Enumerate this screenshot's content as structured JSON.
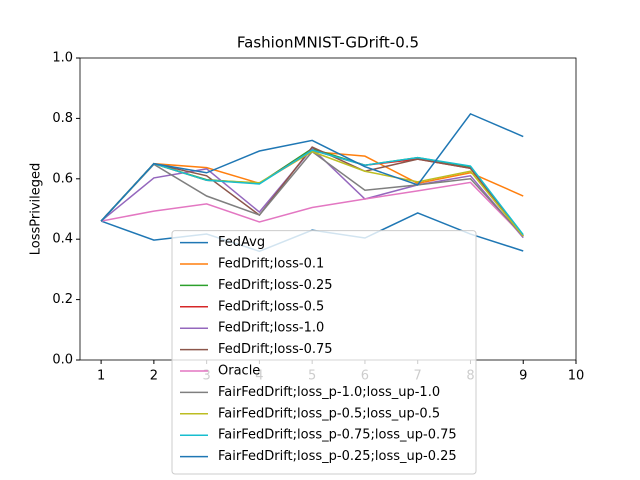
{
  "chart_data": {
    "type": "line",
    "title": "FashionMNIST-GDrift-0.5",
    "y_label": "LossPrivileged",
    "x": [
      1,
      2,
      3,
      4,
      5,
      6,
      7,
      8,
      9
    ],
    "xlim": [
      0.6,
      10
    ],
    "xticks": [
      1,
      2,
      3,
      4,
      5,
      6,
      7,
      8,
      9,
      10
    ],
    "ylim": [
      0,
      1
    ],
    "yticks": [
      {
        "value": 0,
        "label": "0.0"
      },
      {
        "value": 0.2,
        "label": "0.2"
      },
      {
        "value": 0.4,
        "label": "0.4"
      },
      {
        "value": 0.6,
        "label": "0.6"
      },
      {
        "value": 0.8,
        "label": "0.8"
      },
      {
        "value": 1,
        "label": "1.0"
      }
    ],
    "legend": "lower center",
    "series": [
      {
        "name": "FedAvg",
        "color": "#1f77b4",
        "values": [
          0.46,
          0.397,
          0.417,
          0.36,
          0.43,
          0.404,
          0.487,
          0.417,
          0.361
        ]
      },
      {
        "name": "FedDrift;loss-0.1",
        "color": "#ff7f0e",
        "values": [
          0.46,
          0.65,
          0.637,
          0.585,
          0.69,
          0.675,
          0.585,
          0.62,
          0.543
        ]
      },
      {
        "name": "FedDrift;loss-0.25",
        "color": "#2ca02c",
        "values": [
          0.46,
          0.65,
          0.597,
          0.585,
          0.7,
          0.645,
          0.67,
          0.64,
          0.41
        ]
      },
      {
        "name": "FedDrift;loss-0.5",
        "color": "#d62728",
        "values": [
          0.46,
          0.65,
          0.595,
          0.585,
          0.695,
          0.645,
          0.665,
          0.635,
          0.41
        ]
      },
      {
        "name": "FedDrift;loss-1.0",
        "color": "#9467bd",
        "values": [
          0.46,
          0.603,
          0.633,
          0.49,
          0.7,
          0.533,
          0.58,
          0.61,
          0.405
        ]
      },
      {
        "name": "FedDrift;loss-0.75",
        "color": "#8c564b",
        "values": [
          0.46,
          0.65,
          0.61,
          0.48,
          0.705,
          0.625,
          0.665,
          0.635,
          0.41
        ]
      },
      {
        "name": "Oracle",
        "color": "#e377c2",
        "values": [
          0.46,
          0.493,
          0.517,
          0.457,
          0.505,
          0.533,
          0.56,
          0.588,
          0.41
        ]
      },
      {
        "name": "FairFedDrift;loss_p-1.0;loss_up-1.0",
        "color": "#7f7f7f",
        "values": [
          0.46,
          0.648,
          0.543,
          0.48,
          0.69,
          0.562,
          0.58,
          0.6,
          0.41
        ]
      },
      {
        "name": "FairFedDrift;loss_p-0.5;loss_up-0.5",
        "color": "#bcbd22",
        "values": [
          0.46,
          0.65,
          0.595,
          0.587,
          0.69,
          0.625,
          0.59,
          0.625,
          0.41
        ]
      },
      {
        "name": "FairFedDrift;loss_p-0.75;loss_up-0.75",
        "color": "#17becf",
        "values": [
          0.46,
          0.65,
          0.595,
          0.583,
          0.695,
          0.645,
          0.67,
          0.642,
          0.415
        ]
      },
      {
        "name": "FairFedDrift;loss_p-0.25;loss_up-0.25",
        "color": "#1f77b4",
        "values": [
          0.46,
          0.65,
          0.62,
          0.692,
          0.727,
          0.64,
          0.58,
          0.815,
          0.74
        ]
      }
    ]
  }
}
